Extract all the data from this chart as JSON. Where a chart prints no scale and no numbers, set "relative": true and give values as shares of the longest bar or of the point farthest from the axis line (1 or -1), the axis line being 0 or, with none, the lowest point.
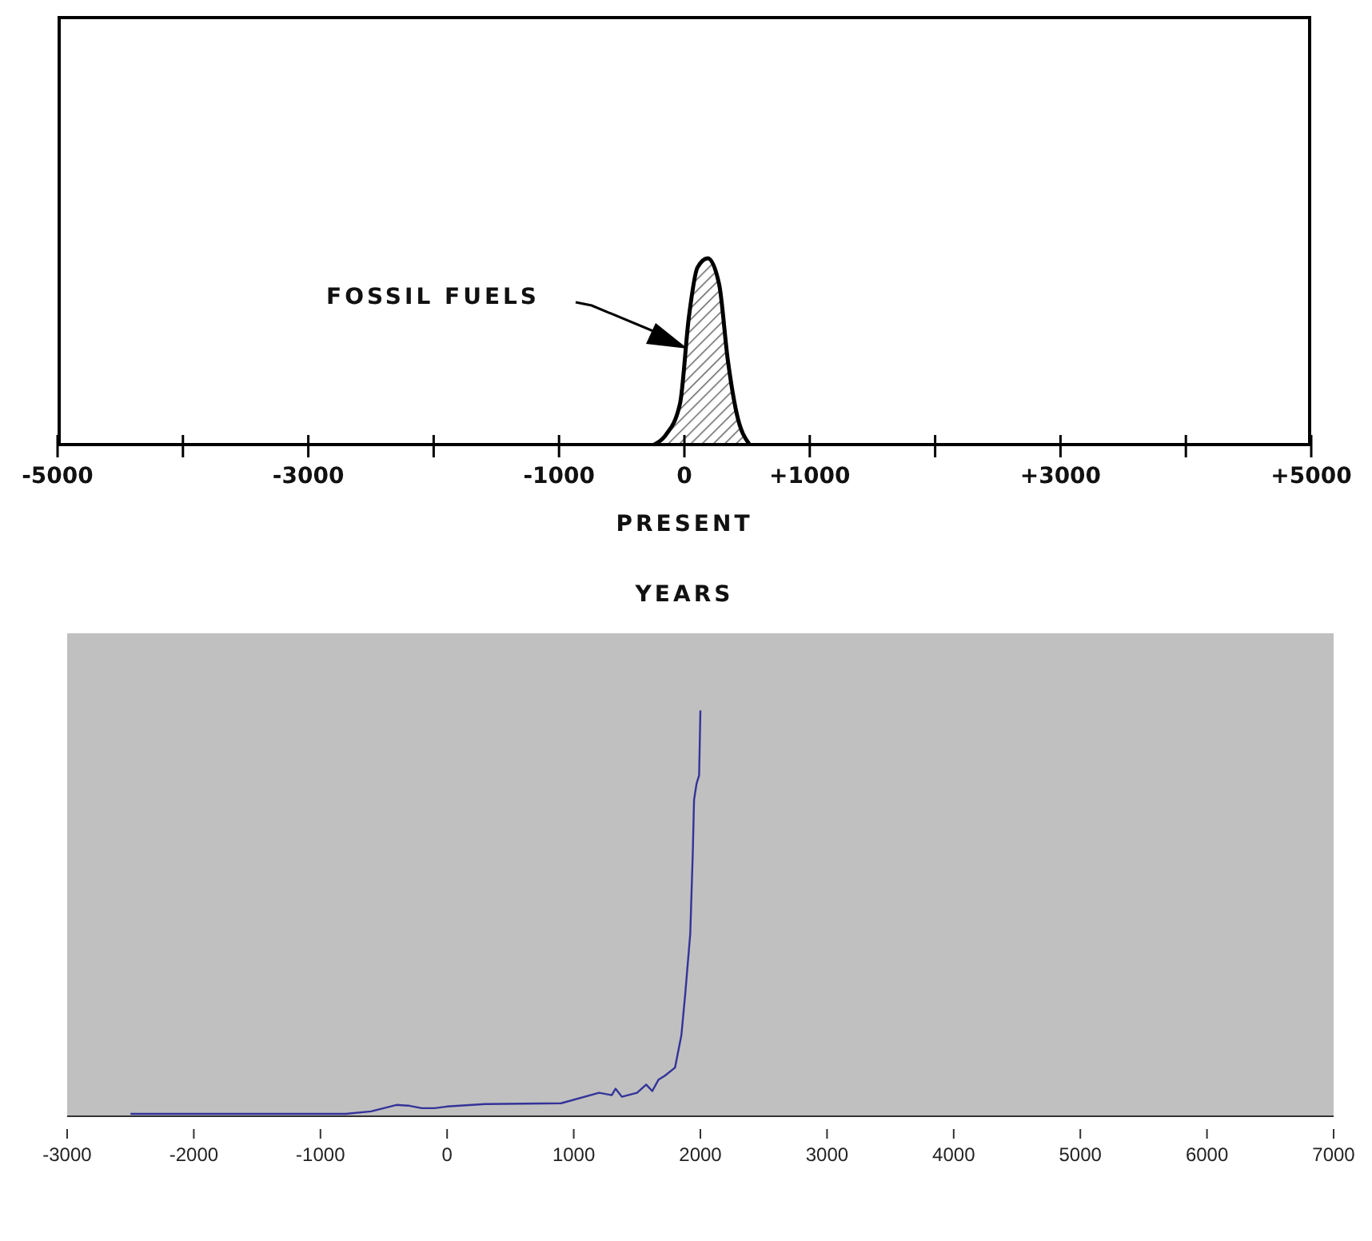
{
  "chart_data": [
    {
      "type": "area",
      "relative": true,
      "xlabel": "YEARS",
      "color": "#000000",
      "grid": false,
      "tick_labels": "x",
      "xlim": [
        -5000,
        5000
      ],
      "xticks": [
        -5000,
        {
          "value": -4000,
          "label": null
        },
        -3000,
        {
          "value": -2000,
          "label": null
        },
        -1000,
        0,
        {
          "value": 1000,
          "label": "+1000"
        },
        {
          "value": 2000,
          "label": null
        },
        {
          "value": 3000,
          "label": "+3000"
        },
        {
          "value": 4000,
          "label": null
        },
        {
          "value": 5000,
          "label": "+5000"
        }
      ],
      "x": [
        -240,
        -150,
        -35,
        35,
        104,
        187,
        277,
        347,
        416,
        520
      ],
      "values": [
        0,
        0.05,
        0.22,
        0.68,
        0.95,
        1,
        0.86,
        0.45,
        0.17,
        0
      ],
      "annotations": [
        "FOSSIL FUELS",
        "PRESENT"
      ]
    },
    {
      "type": "line",
      "relative": true,
      "color": "#333399",
      "grid": false,
      "tick_labels": "x",
      "xlim": [
        -3000,
        7000
      ],
      "xticks": [
        -3000,
        -2000,
        -1000,
        0,
        1000,
        2000,
        3000,
        4000,
        5000,
        6000,
        7000
      ],
      "x": [
        -2500,
        -800,
        -600,
        -400,
        -300,
        -200,
        -100,
        0,
        300,
        900,
        1200,
        1300,
        1330,
        1380,
        1500,
        1572,
        1620,
        1669,
        1720,
        1800,
        1850,
        1880,
        1920,
        1940,
        1950,
        1970,
        1990,
        2000
      ],
      "values": [
        0.006,
        0.006,
        0.012,
        0.028,
        0.026,
        0.02,
        0.02,
        0.024,
        0.03,
        0.032,
        0.058,
        0.052,
        0.068,
        0.048,
        0.058,
        0.078,
        0.062,
        0.09,
        0.1,
        0.12,
        0.2,
        0.3,
        0.45,
        0.65,
        0.78,
        0.82,
        0.84,
        1
      ]
    }
  ]
}
